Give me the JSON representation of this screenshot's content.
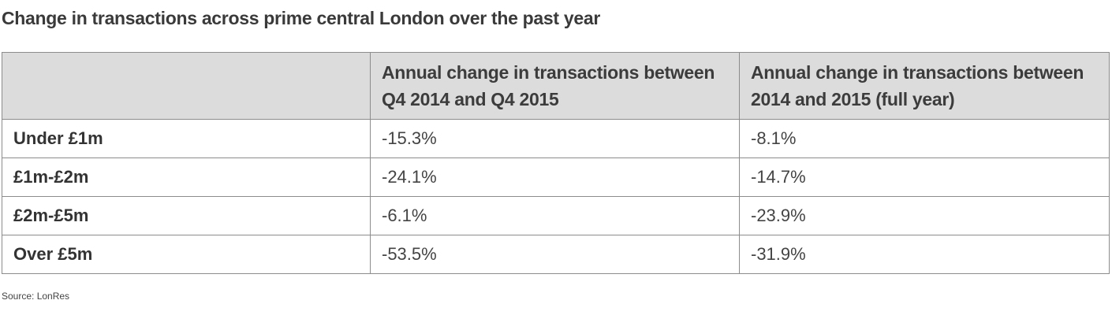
{
  "title": "Change in transactions across prime central London over the past year",
  "table": {
    "headers": [
      "",
      "Annual change in transactions between Q4 2014 and Q4 2015",
      "Annual change in transactions between 2014 and 2015 (full year)"
    ],
    "rows": [
      [
        "Under £1m",
        "-15.3%",
        "-8.1%"
      ],
      [
        "£1m-£2m",
        "-24.1%",
        "-14.7%"
      ],
      [
        "£2m-£5m",
        "-6.1%",
        "-23.9%"
      ],
      [
        "Over £5m",
        "-53.5%",
        "-31.9%"
      ]
    ]
  },
  "source": "Source: LonRes"
}
